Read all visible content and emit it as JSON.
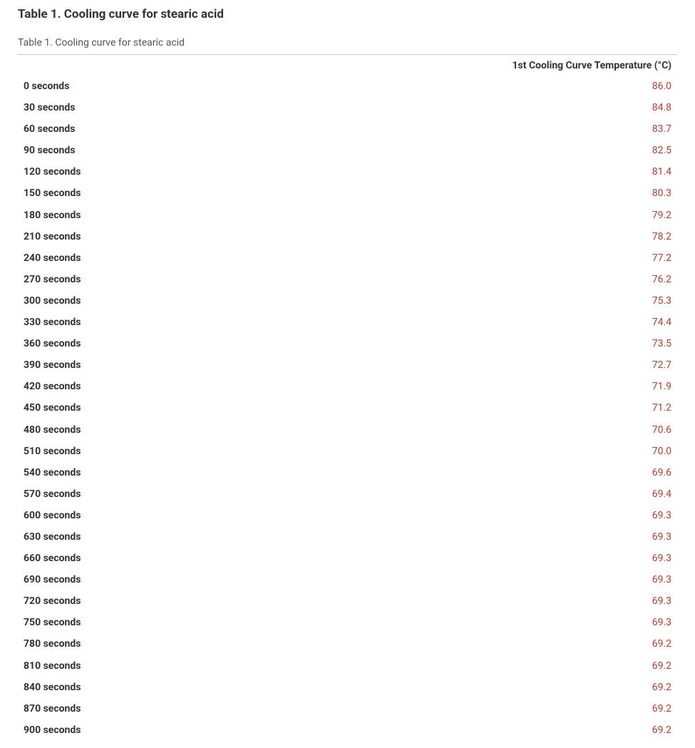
{
  "title": "Table 1. Cooling curve for stearic acid",
  "caption": "Table 1. Cooling curve for stearic acid",
  "table": {
    "type": "table",
    "columns": [
      "",
      "1st Cooling Curve Temperature (°C)"
    ],
    "column_alignment": [
      "left",
      "right"
    ],
    "label_color": "#333333",
    "value_color": "#c0392b",
    "label_font_weight": 700,
    "value_font_weight": 400,
    "font_size_pt": 11,
    "border_color": "#cccccc",
    "background_color": "#ffffff",
    "rows": [
      {
        "label": "0 seconds",
        "value": "86.0"
      },
      {
        "label": "30 seconds",
        "value": "84.8"
      },
      {
        "label": "60 seconds",
        "value": "83.7"
      },
      {
        "label": "90 seconds",
        "value": "82.5"
      },
      {
        "label": "120 seconds",
        "value": "81.4"
      },
      {
        "label": "150 seconds",
        "value": "80.3"
      },
      {
        "label": "180 seconds",
        "value": "79.2"
      },
      {
        "label": "210 seconds",
        "value": "78.2"
      },
      {
        "label": "240 seconds",
        "value": "77.2"
      },
      {
        "label": "270 seconds",
        "value": "76.2"
      },
      {
        "label": "300 seconds",
        "value": "75.3"
      },
      {
        "label": "330 seconds",
        "value": "74.4"
      },
      {
        "label": "360 seconds",
        "value": "73.5"
      },
      {
        "label": "390 seconds",
        "value": "72.7"
      },
      {
        "label": "420 seconds",
        "value": "71.9"
      },
      {
        "label": "450 seconds",
        "value": "71.2"
      },
      {
        "label": "480 seconds",
        "value": "70.6"
      },
      {
        "label": "510 seconds",
        "value": "70.0"
      },
      {
        "label": "540 seconds",
        "value": "69.6"
      },
      {
        "label": "570 seconds",
        "value": "69.4"
      },
      {
        "label": "600 seconds",
        "value": "69.3"
      },
      {
        "label": "630 seconds",
        "value": "69.3"
      },
      {
        "label": "660 seconds",
        "value": "69.3"
      },
      {
        "label": "690 seconds",
        "value": "69.3"
      },
      {
        "label": "720 seconds",
        "value": "69.3"
      },
      {
        "label": "750 seconds",
        "value": "69.3"
      },
      {
        "label": "780 seconds",
        "value": "69.2"
      },
      {
        "label": "810 seconds",
        "value": "69.2"
      },
      {
        "label": "840 seconds",
        "value": "69.2"
      },
      {
        "label": "870 seconds",
        "value": "69.2"
      },
      {
        "label": "900 seconds",
        "value": "69.2"
      }
    ]
  }
}
